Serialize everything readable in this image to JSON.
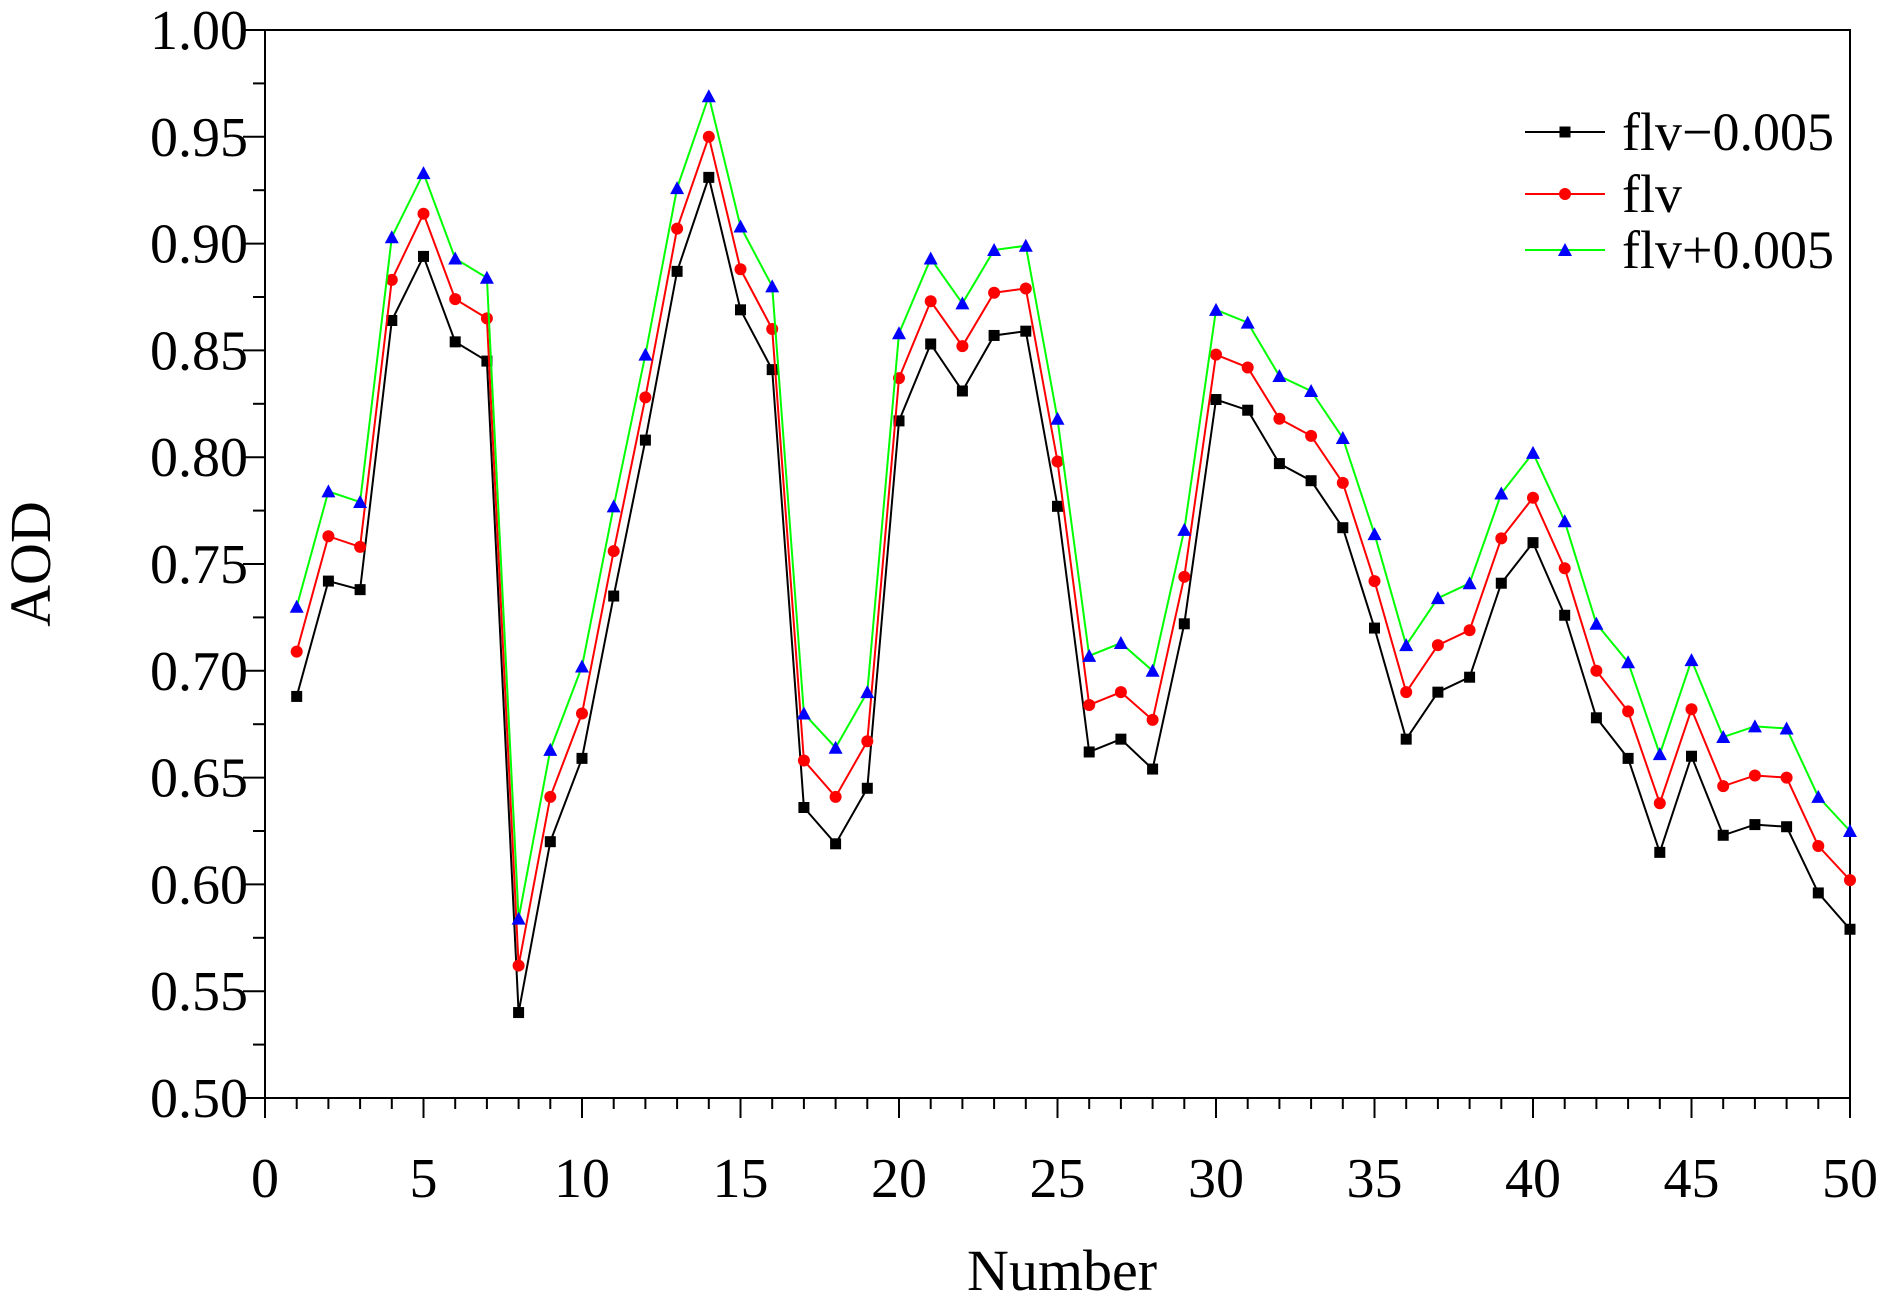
{
  "chart_data": {
    "type": "line",
    "title": "",
    "xlabel": "Number",
    "ylabel": "AOD",
    "xlim": [
      0,
      50
    ],
    "ylim": [
      0.5,
      1.0
    ],
    "x_ticks": [
      "0",
      "5",
      "10",
      "15",
      "20",
      "25",
      "30",
      "35",
      "40",
      "45",
      "50"
    ],
    "y_ticks": [
      "0.50",
      "0.55",
      "0.60",
      "0.65",
      "0.70",
      "0.75",
      "0.80",
      "0.85",
      "0.90",
      "0.95",
      "1.00"
    ],
    "grid": false,
    "legend_position": "top-right",
    "x": [
      1,
      2,
      3,
      4,
      5,
      6,
      7,
      8,
      9,
      10,
      11,
      12,
      13,
      14,
      15,
      16,
      17,
      18,
      19,
      20,
      21,
      22,
      23,
      24,
      25,
      26,
      27,
      28,
      29,
      30,
      31,
      32,
      33,
      34,
      35,
      36,
      37,
      38,
      39,
      40,
      41,
      42,
      43,
      44,
      45,
      46,
      47,
      48,
      49,
      50
    ],
    "series": [
      {
        "name": "flv−0.005",
        "color": "#000000",
        "marker": "square",
        "values": [
          0.688,
          0.742,
          0.738,
          0.864,
          0.894,
          0.854,
          0.845,
          0.54,
          0.62,
          0.659,
          0.735,
          0.808,
          0.887,
          0.931,
          0.869,
          0.841,
          0.636,
          0.619,
          0.645,
          0.817,
          0.853,
          0.831,
          0.857,
          0.859,
          0.777,
          0.662,
          0.668,
          0.654,
          0.722,
          0.827,
          0.822,
          0.797,
          0.789,
          0.767,
          0.72,
          0.668,
          0.69,
          0.697,
          0.741,
          0.76,
          0.726,
          0.678,
          0.659,
          0.615,
          0.66,
          0.623,
          0.628,
          0.627,
          0.596,
          0.579
        ]
      },
      {
        "name": "flv",
        "color": "#ff0000",
        "marker": "circle",
        "values": [
          0.709,
          0.763,
          0.758,
          0.883,
          0.914,
          0.874,
          0.865,
          0.562,
          0.641,
          0.68,
          0.756,
          0.828,
          0.907,
          0.95,
          0.888,
          0.86,
          0.658,
          0.641,
          0.667,
          0.837,
          0.873,
          0.852,
          0.877,
          0.879,
          0.798,
          0.684,
          0.69,
          0.677,
          0.744,
          0.848,
          0.842,
          0.818,
          0.81,
          0.788,
          0.742,
          0.69,
          0.712,
          0.719,
          0.762,
          0.781,
          0.748,
          0.7,
          0.681,
          0.638,
          0.682,
          0.646,
          0.651,
          0.65,
          0.618,
          0.602
        ]
      },
      {
        "name": "flv+0.005",
        "color": "#00ff00",
        "marker_color": "#0000ff",
        "marker": "triangle",
        "values": [
          0.73,
          0.784,
          0.779,
          0.903,
          0.933,
          0.893,
          0.884,
          0.584,
          0.663,
          0.702,
          0.777,
          0.848,
          0.926,
          0.969,
          0.908,
          0.88,
          0.68,
          0.664,
          0.69,
          0.858,
          0.893,
          0.872,
          0.897,
          0.899,
          0.818,
          0.707,
          0.713,
          0.7,
          0.766,
          0.869,
          0.863,
          0.838,
          0.831,
          0.809,
          0.764,
          0.712,
          0.734,
          0.741,
          0.783,
          0.802,
          0.77,
          0.722,
          0.704,
          0.661,
          0.705,
          0.669,
          0.674,
          0.673,
          0.641,
          0.625
        ]
      }
    ]
  }
}
